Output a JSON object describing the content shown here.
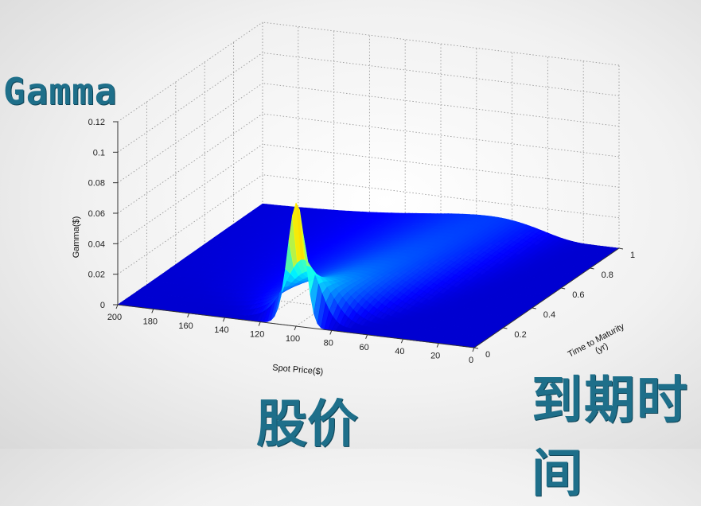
{
  "overlay": {
    "gamma": "Gamma",
    "spot": "股价",
    "time": "到期时间"
  },
  "chart_data": {
    "type": "surface",
    "title": "",
    "xlabel": "Spot Price($)",
    "ylabel": "Time to Maturity (yr)",
    "ylabel_lines": [
      "Time to Maturity",
      "(yr)"
    ],
    "zlabel": "Gamma($)",
    "x_ticks": [
      200,
      180,
      160,
      140,
      120,
      100,
      80,
      60,
      40,
      20,
      0
    ],
    "y_ticks": [
      0,
      0.2,
      0.4,
      0.6,
      0.8,
      1
    ],
    "z_ticks": [
      0,
      0.02,
      0.04,
      0.06,
      0.08,
      0.1,
      0.12
    ],
    "x_tick_labels": [
      "200",
      "180",
      "160",
      "140",
      "120",
      "100",
      "80",
      "60",
      "40",
      "20",
      "0"
    ],
    "y_tick_labels": [
      "0",
      "0.2",
      "0.4",
      "0.6",
      "0.8",
      "1"
    ],
    "z_tick_labels": [
      "0",
      "0.02",
      "0.04",
      "0.06",
      "0.08",
      "0.1",
      "0.12"
    ],
    "xlim": [
      0,
      200
    ],
    "ylim": [
      0,
      1
    ],
    "zlim": [
      0,
      0.12
    ],
    "grid": true,
    "colormap": "jet",
    "strike": 100,
    "peak_gamma": 0.097
  }
}
